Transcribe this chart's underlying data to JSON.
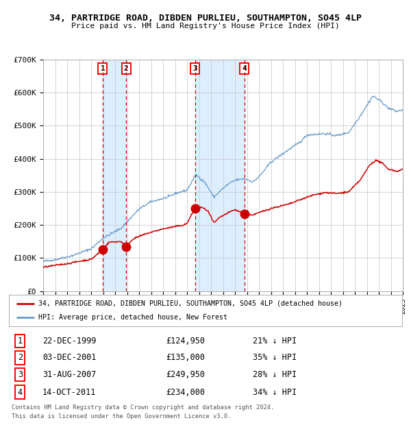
{
  "title_line1": "34, PARTRIDGE ROAD, DIBDEN PURLIEU, SOUTHAMPTON, SO45 4LP",
  "title_line2": "Price paid vs. HM Land Registry's House Price Index (HPI)",
  "sale_prices": [
    124950,
    135000,
    249950,
    234000
  ],
  "sale_labels": [
    "1",
    "2",
    "3",
    "4"
  ],
  "sale_hpi_pct": [
    "21% ↓ HPI",
    "35% ↓ HPI",
    "28% ↓ HPI",
    "34% ↓ HPI"
  ],
  "sale_date_strs": [
    "22-DEC-1999",
    "03-DEC-2001",
    "31-AUG-2007",
    "14-OCT-2011"
  ],
  "sale_price_strs": [
    "£124,950",
    "£135,000",
    "£249,950",
    "£234,000"
  ],
  "sale_years": [
    1999.97,
    2001.92,
    2007.66,
    2011.79
  ],
  "red_line_color": "#cc0000",
  "blue_line_color": "#6699cc",
  "shade_color": "#ddeeff",
  "dashed_color": "#cc0000",
  "background_color": "#ffffff",
  "grid_color": "#cccccc",
  "legend_label_red": "34, PARTRIDGE ROAD, DIBDEN PURLIEU, SOUTHAMPTON, SO45 4LP (detached house)",
  "legend_label_blue": "HPI: Average price, detached house, New Forest",
  "footer_line1": "Contains HM Land Registry data © Crown copyright and database right 2024.",
  "footer_line2": "This data is licensed under the Open Government Licence v3.0.",
  "ylim": [
    0,
    700000
  ],
  "yticks": [
    0,
    100000,
    200000,
    300000,
    400000,
    500000,
    600000,
    700000
  ],
  "ytick_labels": [
    "£0",
    "£100K",
    "£200K",
    "£300K",
    "£400K",
    "£500K",
    "£600K",
    "£700K"
  ],
  "hpi_anchors_t": [
    1995.0,
    1996.0,
    1997.5,
    1999.0,
    2000.0,
    2001.5,
    2002.0,
    2003.0,
    2004.0,
    2005.5,
    2006.0,
    2007.0,
    2007.75,
    2008.5,
    2009.25,
    2009.92,
    2010.5,
    2011.0,
    2011.83,
    2012.5,
    2013.0,
    2014.0,
    2015.5,
    2016.5,
    2017.0,
    2018.5,
    2019.5,
    2020.5,
    2021.5,
    2022.5,
    2023.25,
    2023.75,
    2024.5,
    2024.99
  ],
  "hpi_anchors_v": [
    90000,
    95000,
    108000,
    128000,
    160000,
    190000,
    210000,
    248000,
    270000,
    285000,
    295000,
    305000,
    352000,
    328000,
    284000,
    308000,
    325000,
    335000,
    340000,
    330000,
    345000,
    390000,
    428000,
    452000,
    472000,
    476000,
    470000,
    480000,
    532000,
    590000,
    572000,
    554000,
    543000,
    548000
  ],
  "red_anchors_t": [
    1995.0,
    1996.0,
    1997.0,
    1998.0,
    1999.0,
    1999.97,
    2000.5,
    2001.5,
    2001.92,
    2002.5,
    2003.5,
    2004.0,
    2005.0,
    2006.0,
    2006.75,
    2007.0,
    2007.66,
    2008.25,
    2008.75,
    2009.25,
    2009.75,
    2010.5,
    2011.0,
    2011.79,
    2012.5,
    2013.0,
    2014.0,
    2015.5,
    2016.5,
    2017.5,
    2018.5,
    2019.5,
    2020.5,
    2021.5,
    2022.25,
    2022.75,
    2023.25,
    2023.75,
    2024.5,
    2024.99
  ],
  "red_anchors_v": [
    72000,
    78000,
    83000,
    90000,
    96000,
    124950,
    148000,
    150000,
    135000,
    158000,
    172000,
    178000,
    188000,
    195000,
    200000,
    205000,
    249950,
    253000,
    242000,
    206000,
    223000,
    238000,
    246000,
    234000,
    230000,
    237000,
    250000,
    263000,
    277000,
    290000,
    298000,
    295000,
    300000,
    338000,
    382000,
    395000,
    388000,
    370000,
    362000,
    368000
  ]
}
